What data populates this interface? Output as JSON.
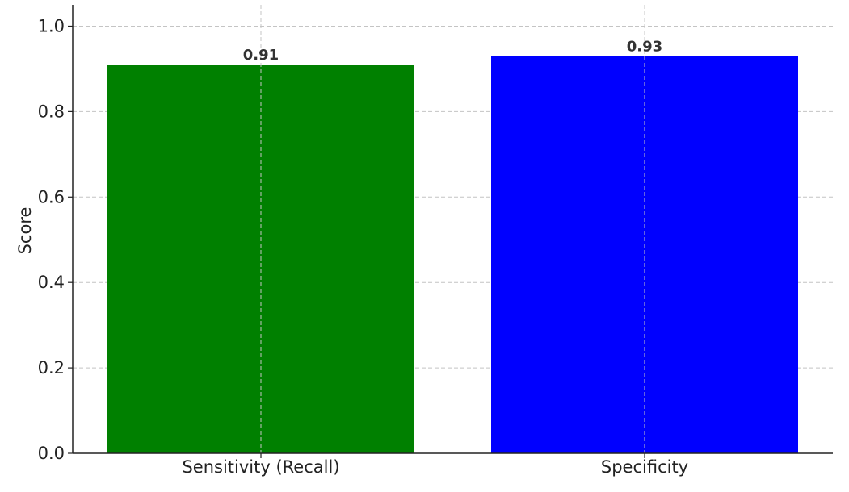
{
  "chart_data": {
    "type": "bar",
    "title": "",
    "xlabel": "",
    "ylabel": "Score",
    "categories": [
      "Sensitivity (Recall)",
      "Specificity"
    ],
    "values": [
      0.91,
      0.93
    ],
    "data_labels": [
      "0.91",
      "0.93"
    ],
    "bar_colors": [
      "#008000",
      "#0000ff"
    ],
    "ylim": [
      0,
      1.05
    ],
    "yticks": [
      0.0,
      0.2,
      0.4,
      0.6,
      0.8,
      1.0
    ],
    "ytick_labels": [
      "0.0",
      "0.2",
      "0.4",
      "0.6",
      "0.8",
      "1.0"
    ],
    "grid": true,
    "legend": "none"
  }
}
